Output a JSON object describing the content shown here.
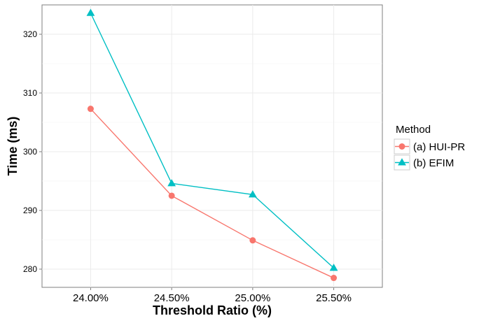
{
  "chart_data": {
    "type": "line",
    "categories": [
      "24.00%",
      "24.50%",
      "25.00%",
      "25.50%"
    ],
    "series": [
      {
        "name": "(a) HUI-PR",
        "values": [
          307.3,
          292.5,
          284.9,
          278.5
        ],
        "color": "#f8766d",
        "marker": "circle"
      },
      {
        "name": "(b) EFIM",
        "values": [
          323.6,
          294.6,
          292.7,
          280.2
        ],
        "color": "#00bfc4",
        "marker": "triangle"
      }
    ],
    "title": "",
    "xlabel": "Threshold Ratio (%)",
    "ylabel": "Time (ms)",
    "ylim": [
      276.9,
      325.0
    ],
    "yticks": [
      280,
      290,
      300,
      310,
      320
    ],
    "grid": true,
    "legend": {
      "title": "Method",
      "position": "right"
    }
  }
}
